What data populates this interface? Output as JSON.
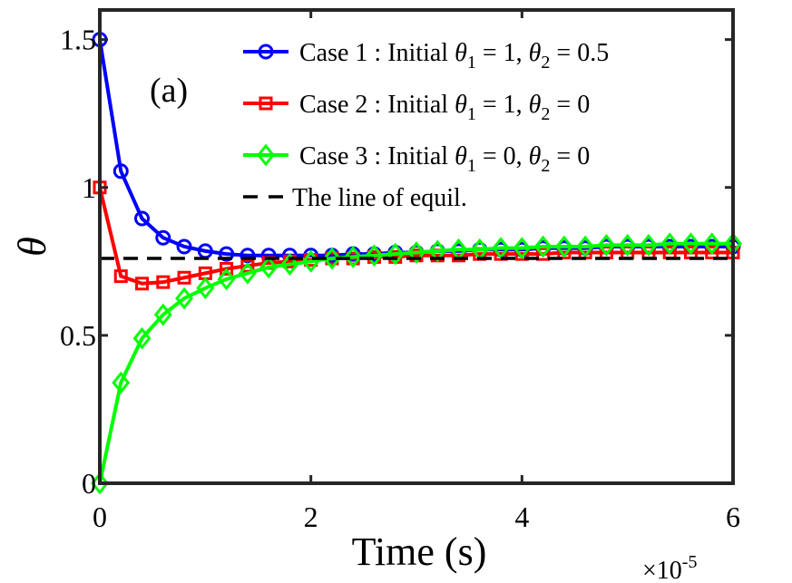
{
  "chart_data": {
    "type": "line",
    "xlabel": "Time (s)",
    "x_exponent_base": "×10",
    "x_exponent": "-5",
    "ylabel": "θ",
    "annotation": "(a)",
    "xlim": [
      0,
      6
    ],
    "ylim": [
      0,
      1.6
    ],
    "xticks": [
      0,
      2,
      4,
      6
    ],
    "xtick_labels": [
      "0",
      "2",
      "4",
      "6"
    ],
    "yticks": [
      0,
      0.5,
      1,
      1.5
    ],
    "ytick_labels": [
      "0",
      "0.5",
      "1",
      "1.5"
    ],
    "grid": false,
    "legend_position": "top-right",
    "x": [
      0,
      0.2,
      0.4,
      0.6,
      0.8,
      1.0,
      1.2,
      1.4,
      1.6,
      1.8,
      2.0,
      2.2,
      2.4,
      2.6,
      2.8,
      3.0,
      3.2,
      3.4,
      3.6,
      3.8,
      4.0,
      4.2,
      4.4,
      4.6,
      4.8,
      5.0,
      5.2,
      5.4,
      5.6,
      5.8,
      6.0
    ],
    "series": [
      {
        "name": "Case 1 : Initial θ1 = 1, θ2 = 0.5",
        "legend_parts": [
          "Case 1 : Initial ",
          "θ",
          "1",
          " = 1, ",
          "θ",
          "2",
          " = 0.5"
        ],
        "color": "#0000ff",
        "marker": "circle",
        "values": [
          1.5,
          1.055,
          0.895,
          0.83,
          0.8,
          0.785,
          0.775,
          0.77,
          0.77,
          0.77,
          0.77,
          0.77,
          0.775,
          0.775,
          0.78,
          0.78,
          0.785,
          0.785,
          0.79,
          0.79,
          0.79,
          0.795,
          0.795,
          0.795,
          0.8,
          0.8,
          0.8,
          0.8,
          0.8,
          0.8,
          0.8
        ]
      },
      {
        "name": "Case 2 : Initial θ1 = 1, θ2 = 0",
        "legend_parts": [
          "Case 2 : Initial ",
          "θ",
          "1",
          " = 1, ",
          "θ",
          "2",
          " = 0"
        ],
        "color": "#ff0000",
        "marker": "square",
        "values": [
          1.0,
          0.7,
          0.675,
          0.68,
          0.695,
          0.71,
          0.725,
          0.735,
          0.745,
          0.75,
          0.755,
          0.76,
          0.76,
          0.765,
          0.765,
          0.77,
          0.77,
          0.77,
          0.775,
          0.775,
          0.775,
          0.775,
          0.78,
          0.78,
          0.78,
          0.78,
          0.78,
          0.78,
          0.78,
          0.78,
          0.78
        ]
      },
      {
        "name": "Case 3 : Initial θ1 = 0, θ2 = 0",
        "legend_parts": [
          "Case 3 : Initial ",
          "θ",
          "1",
          " = 0, ",
          "θ",
          "2",
          " = 0"
        ],
        "color": "#00ff00",
        "marker": "diamond",
        "values": [
          0,
          0.34,
          0.49,
          0.57,
          0.625,
          0.66,
          0.69,
          0.71,
          0.73,
          0.74,
          0.75,
          0.76,
          0.765,
          0.77,
          0.775,
          0.78,
          0.785,
          0.79,
          0.79,
          0.795,
          0.795,
          0.8,
          0.8,
          0.8,
          0.805,
          0.805,
          0.805,
          0.81,
          0.81,
          0.81,
          0.81
        ]
      },
      {
        "name": "The line of equil.",
        "color": "#000000",
        "style": "dashed",
        "constant": 0.76
      }
    ]
  }
}
